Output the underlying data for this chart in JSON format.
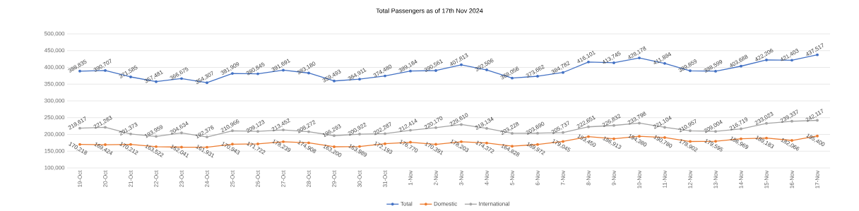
{
  "chart_data": {
    "type": "line",
    "title": "Total Passengers as of 17th Nov 2024",
    "categories": [
      "19-Oct",
      "20-Oct",
      "21-Oct",
      "22-Oct",
      "23-Oct",
      "24-Oct",
      "25-Oct",
      "26-Oct",
      "27-Oct",
      "28-Oct",
      "29-Oct",
      "30-Oct",
      "31-Oct",
      "1-Nov",
      "2-Nov",
      "3-Nov",
      "4-Nov",
      "5-Nov",
      "6-Nov",
      "7-Nov",
      "8-Nov",
      "9-Nov",
      "10-Nov",
      "11-Nov",
      "12-Nov",
      "13-Nov",
      "14-Nov",
      "15-Nov",
      "16-Nov",
      "17-Nov"
    ],
    "series": [
      {
        "name": "Total",
        "color": "#4472c4",
        "values": [
          388835,
          390707,
          371585,
          357481,
          366675,
          354307,
          381909,
          380845,
          391691,
          383180,
          359493,
          364911,
          374480,
          389184,
          390561,
          407813,
          392506,
          368056,
          373662,
          384782,
          416101,
          413745,
          428178,
          411884,
          389859,
          388599,
          403688,
          422206,
          421403,
          437517
        ],
        "value_labels": [
          "388,835",
          "390,707",
          "371,585",
          "357,481",
          "366,675",
          "354,307",
          "381,909",
          "380,845",
          "391,691",
          "383,180",
          "359,493",
          "364,911",
          "374,480",
          "389,184",
          "390,561",
          "407,813",
          "392,506",
          "368,056",
          "373,662",
          "384,782",
          "416,101",
          "413,745",
          "428,178",
          "411,884",
          "389,859",
          "388,599",
          "403,688",
          "422,206",
          "421,403",
          "437,517"
        ]
      },
      {
        "name": "Domestic",
        "color": "#ed7d31",
        "values": [
          170218,
          169424,
          170212,
          163522,
          162041,
          161931,
          170943,
          171722,
          178239,
          174908,
          163200,
          163989,
          172193,
          176770,
          170391,
          178203,
          174372,
          164828,
          169972,
          179045,
          193450,
          186913,
          194380,
          190780,
          178902,
          179595,
          186969,
          189183,
          182066,
          195400
        ],
        "value_labels": [
          "170,218",
          "169,424",
          "170,212",
          "163,522",
          "162,041",
          "161,931",
          "170,943",
          "171,722",
          "178,239",
          "174,908",
          "163,200",
          "163,989",
          "172,193",
          "176,770",
          "170,391",
          "178,203",
          "174,372",
          "164,828",
          "169,972",
          "179,045",
          "193,450",
          "186,913",
          "194,380",
          "190,780",
          "178,902",
          "179,595",
          "186,969",
          "189,183",
          "182,066",
          "195,400"
        ]
      },
      {
        "name": "International",
        "color": "#a5a5a5",
        "values": [
          218617,
          221283,
          201373,
          193959,
          204634,
          192376,
          210966,
          209123,
          213452,
          208272,
          196293,
          200922,
          202287,
          212414,
          220170,
          229610,
          218134,
          203228,
          203690,
          205737,
          222651,
          226832,
          233798,
          221104,
          210957,
          209004,
          216719,
          233023,
          239337,
          242117
        ],
        "value_labels": [
          "218,617",
          "221,283",
          "201,373",
          "193,959",
          "204,634",
          "192,376",
          "210,966",
          "209,123",
          "213,452",
          "208,272",
          "196,293",
          "200,922",
          "202,287",
          "212,414",
          "220,170",
          "229,610",
          "218,134",
          "203,228",
          "203,690",
          "205,737",
          "222,651",
          "226,832",
          "233,798",
          "221,104",
          "210,957",
          "209,004",
          "216,719",
          "233,023",
          "239,337",
          "242,117"
        ]
      }
    ],
    "ylim": [
      100000,
      500000
    ],
    "yticks": [
      {
        "value": 100000,
        "label": "100,000"
      },
      {
        "value": 150000,
        "label": "150,000"
      },
      {
        "value": 200000,
        "label": "200,000"
      },
      {
        "value": 250000,
        "label": "250,000"
      },
      {
        "value": 300000,
        "label": "300,000"
      },
      {
        "value": 350000,
        "label": "350,000"
      },
      {
        "value": 400000,
        "label": "400,000"
      },
      {
        "value": 450000,
        "label": "450,000"
      },
      {
        "value": 500000,
        "label": "500,000"
      }
    ],
    "grid": "y",
    "legend": "bottom",
    "marker": "circle",
    "line_style": "solid"
  }
}
